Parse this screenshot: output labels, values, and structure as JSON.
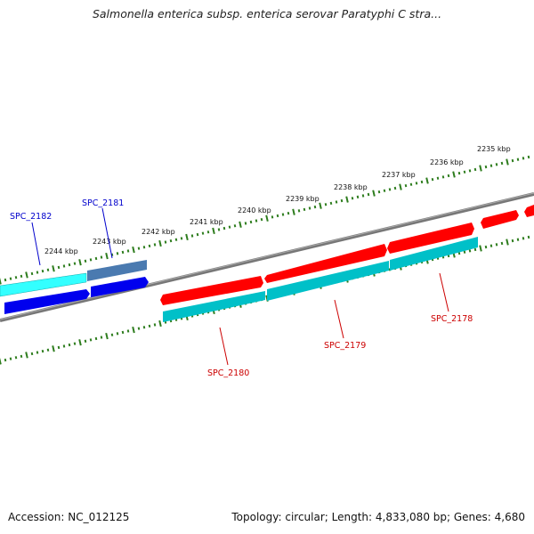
{
  "title": "Salmonella enterica subsp. enterica serovar Paratyphi C stra...",
  "footer": {
    "accession": "Accession: NC_012125",
    "summary": "Topology: circular; Length: 4,833,080 bp; Genes: 4,680"
  },
  "colors": {
    "backbone": "#808080",
    "tick": "#2e7d1e",
    "forward_gene": "#ff0000",
    "forward_cds": "#00c0c8",
    "reverse_gene": "#0000ee",
    "reverse_cds": "#33ffff",
    "selected_gene": "#4a7ab0",
    "label_reverse": "#0000cc",
    "label_forward": "#cc0000"
  },
  "scale": {
    "unit": "kbp",
    "labels": [
      "2235 kbp",
      "2236 kbp",
      "2237 kbp",
      "2238 kbp",
      "2239 kbp",
      "2240 kbp",
      "2241 kbp",
      "2242 kbp",
      "2243 kbp",
      "2244 kbp"
    ]
  },
  "gene_labels": [
    {
      "text": "SPC_2182",
      "strand": "reverse"
    },
    {
      "text": "SPC_2181",
      "strand": "reverse"
    },
    {
      "text": "SPC_2180",
      "strand": "forward"
    },
    {
      "text": "SPC_2179",
      "strand": "forward"
    },
    {
      "text": "SPC_2178",
      "strand": "forward"
    }
  ]
}
